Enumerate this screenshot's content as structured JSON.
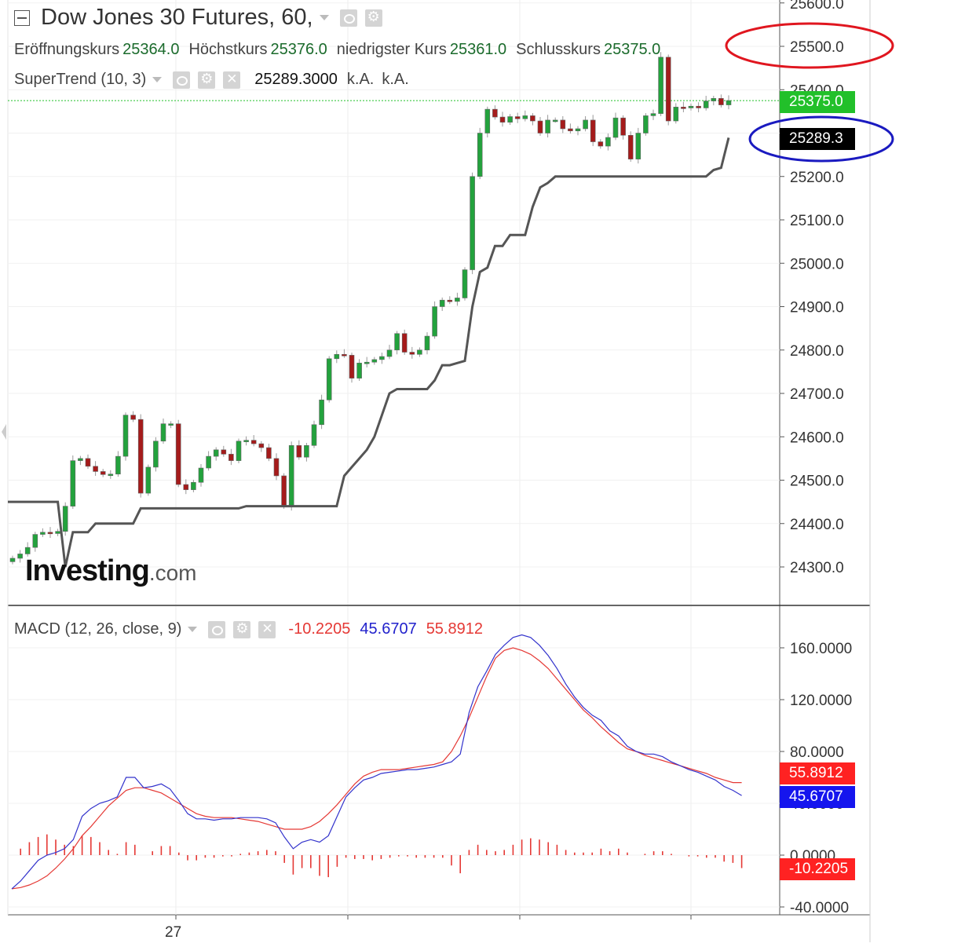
{
  "header": {
    "title": "Dow Jones 30 Futures, 60,",
    "open_label": "Eröffnungskurs",
    "open_value": "25364.0",
    "high_label": "Höchstkurs",
    "high_value": "25376.0",
    "low_label": "niedrigster Kurs",
    "low_value": "25361.0",
    "close_label": "Schlusskurs",
    "close_value": "25375.0"
  },
  "supertrend": {
    "label": "SuperTrend (10, 3)",
    "value": "25289.3000",
    "na1": "k.A.",
    "na2": "k.A."
  },
  "macd": {
    "label": "MACD (12, 26, close, 9)",
    "hist": "-10.2205",
    "macd": "45.6707",
    "signal": "55.8912"
  },
  "logo": {
    "brand": "Investing",
    "suffix": ".com"
  },
  "tags": {
    "price": "25375.0",
    "supertrend": "25289.3",
    "signal": "55.8912",
    "macd": "45.6707",
    "hist": "-10.2205"
  },
  "colors": {
    "up": "#23a23d",
    "down": "#a51b1b",
    "supertrend": "#555555",
    "macd": "#3333cc",
    "signal": "#e53935",
    "hist": "#e53935",
    "price_tag": "#22c02a"
  },
  "chart_data": [
    {
      "type": "candlestick",
      "title": "Dow Jones 30 Futures, 60,",
      "xlabel": "",
      "ylabel": "",
      "ylim": [
        24230,
        25600
      ],
      "yticks": [
        "25600.0",
        "25500.0",
        "25400.0",
        "25300.0",
        "25200.0",
        "25100.0",
        "25000.0",
        "24900.0",
        "24800.0",
        "24700.0",
        "24600.0",
        "24500.0",
        "24400.0",
        "24300.0"
      ],
      "xticks": [
        "27"
      ],
      "close": [
        24320,
        24330,
        24345,
        24375,
        24380,
        24377,
        24382,
        24440,
        24545,
        24550,
        24532,
        24520,
        24513,
        24514,
        24555,
        24650,
        24640,
        24470,
        24530,
        24590,
        24630,
        24630,
        24490,
        24478,
        24495,
        24528,
        24555,
        24570,
        24560,
        24545,
        24590,
        24592,
        24584,
        24575,
        24550,
        24510,
        24440,
        24580,
        24553,
        24580,
        24628,
        24685,
        24780,
        24790,
        24788,
        24735,
        24770,
        24772,
        24778,
        24785,
        24800,
        24838,
        24795,
        24790,
        24800,
        24832,
        24900,
        24915,
        24912,
        24920,
        24985,
        25200,
        25300,
        25355,
        25337,
        25325,
        25338,
        25333,
        25340,
        25328,
        25300,
        25330,
        25330,
        25310,
        25305,
        25310,
        25330,
        25280,
        25270,
        25290,
        25335,
        25295,
        25240,
        25300,
        25340,
        25345,
        25475,
        25328,
        25360,
        25358,
        25362,
        25358,
        25374,
        25380,
        25365,
        25375
      ],
      "supertrend": [
        24450,
        24450,
        24450,
        24450,
        24450,
        24450,
        24450,
        24300,
        24380,
        24380,
        24380,
        24400,
        24400,
        24400,
        24400,
        24400,
        24400,
        24435,
        24435,
        24435,
        24435,
        24435,
        24435,
        24435,
        24435,
        24435,
        24435,
        24435,
        24435,
        24435,
        24435,
        24440,
        24440,
        24440,
        24440,
        24440,
        24440,
        24440,
        24440,
        24440,
        24440,
        24440,
        24440,
        24440,
        24510,
        24530,
        24550,
        24570,
        24600,
        24650,
        24700,
        24710,
        24710,
        24710,
        24710,
        24710,
        24730,
        24765,
        24765,
        24770,
        24775,
        24900,
        24980,
        24990,
        25040,
        25040,
        25065,
        25065,
        25065,
        25130,
        25175,
        25185,
        25200,
        25200,
        25200,
        25200,
        25200,
        25200,
        25200,
        25200,
        25200,
        25200,
        25200,
        25200,
        25200,
        25200,
        25200,
        25200,
        25200,
        25200,
        25200,
        25200,
        25200,
        25215,
        25220,
        25289.3
      ]
    },
    {
      "type": "macd",
      "ylim": [
        -45,
        175
      ],
      "yticks": [
        "160.0000",
        "120.0000",
        "80.0000",
        "40.0000",
        "0.0000",
        "-40.0000"
      ],
      "macd": [
        -26,
        -20,
        -12,
        -4,
        0,
        2,
        5,
        12,
        30,
        36,
        40,
        42,
        45,
        60,
        60,
        52,
        53,
        55,
        51,
        42,
        32,
        28,
        28,
        27,
        28,
        28,
        29,
        29,
        29,
        28,
        25,
        14,
        5,
        10,
        12,
        10,
        15,
        30,
        45,
        52,
        58,
        60,
        63,
        64,
        65,
        66,
        66,
        67,
        68,
        70,
        72,
        78,
        110,
        130,
        142,
        155,
        162,
        168,
        170,
        168,
        162,
        154,
        144,
        132,
        122,
        114,
        108,
        104,
        96,
        92,
        84,
        80,
        78,
        78,
        76,
        72,
        69,
        66,
        64,
        61,
        58,
        53,
        50,
        46
      ],
      "signal": [
        -26,
        -25,
        -23,
        -20,
        -16,
        -10,
        -3,
        5,
        15,
        22,
        30,
        38,
        44,
        50,
        52,
        52,
        50,
        48,
        44,
        40,
        36,
        32,
        30,
        29,
        29,
        29,
        28,
        27,
        26,
        24,
        22,
        20,
        20,
        20,
        22,
        26,
        32,
        39,
        47,
        55,
        61,
        64,
        66,
        66,
        66,
        67,
        68,
        69,
        70,
        72,
        80,
        92,
        106,
        122,
        138,
        152,
        158,
        160,
        158,
        155,
        150,
        144,
        136,
        128,
        120,
        112,
        106,
        99,
        93,
        87,
        82,
        80,
        77,
        75,
        73,
        71,
        69,
        67,
        65,
        63,
        60,
        58,
        56,
        56
      ],
      "histogram": [
        0,
        5,
        10,
        14,
        16,
        12,
        8,
        7,
        15,
        14,
        10,
        4,
        1,
        10,
        8,
        0,
        3,
        7,
        7,
        2,
        -4,
        -4,
        -2,
        -2,
        -1,
        -1,
        1,
        2,
        3,
        4,
        3,
        -6,
        -15,
        -10,
        -10,
        -16,
        -17,
        -9,
        -2,
        -3,
        -3,
        -4,
        -3,
        -2,
        -1,
        -1,
        -2,
        -2,
        -2,
        -2,
        -8,
        -14,
        4,
        8,
        4,
        3,
        4,
        8,
        12,
        13,
        12,
        10,
        8,
        4,
        2,
        2,
        2,
        5,
        3,
        5,
        2,
        0,
        1,
        3,
        3,
        1,
        0,
        -1,
        -1,
        -2,
        -2,
        -5,
        -6,
        -10
      ]
    }
  ]
}
